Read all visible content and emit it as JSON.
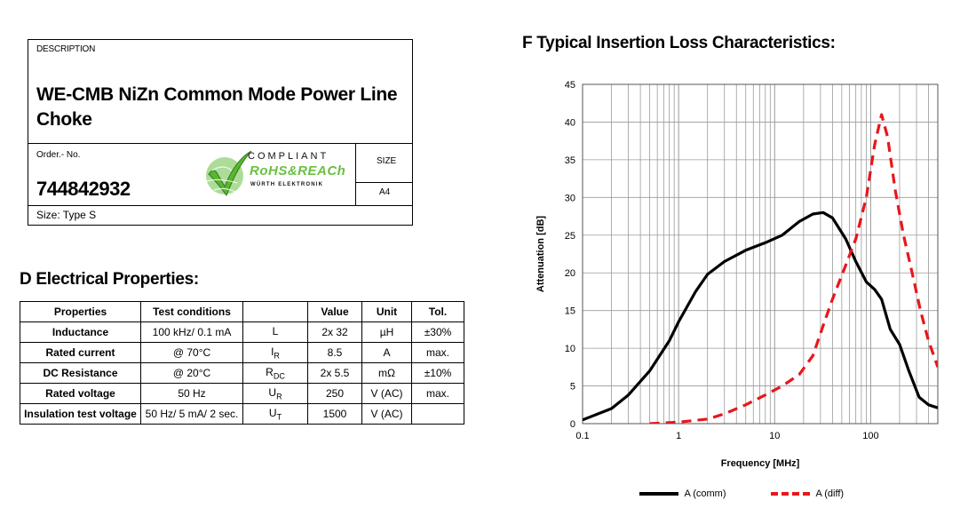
{
  "header": {
    "description_label": "DESCRIPTION",
    "product_title": "WE-CMB NiZn Common Mode Power Line Choke",
    "order_label": "Order.- No.",
    "order_number": "744842932",
    "size_label": "SIZE",
    "size_value": "A4",
    "size_type": "Size: Type S",
    "logo": {
      "line1": "COMPLIANT",
      "line2": "RoHS&REACh",
      "line3": "WÜRTH ELEKTRONIK",
      "accent": "#6ac043"
    }
  },
  "electrical": {
    "title": "D Electrical Properties:",
    "headers": [
      "Properties",
      "Test conditions",
      "",
      "Value",
      "Unit",
      "Tol."
    ],
    "rows": [
      {
        "property": "Inductance",
        "condition": "100 kHz/ 0.1 mA",
        "sym": "L",
        "sub": "",
        "value": "2x 32",
        "unit": "µH",
        "tol": "±30%"
      },
      {
        "property": "Rated current",
        "condition": "@ 70°C",
        "sym": "I",
        "sub": "R",
        "value": "8.5",
        "unit": "A",
        "tol": "max."
      },
      {
        "property": "DC Resistance",
        "condition": "@ 20°C",
        "sym": "R",
        "sub": "DC",
        "value": "2x 5.5",
        "unit": "mΩ",
        "tol": "±10%"
      },
      {
        "property": "Rated voltage",
        "condition": "50 Hz",
        "sym": "U",
        "sub": "R",
        "value": "250",
        "unit": "V (AC)",
        "tol": "max."
      },
      {
        "property": "Insulation test voltage",
        "condition": "50 Hz/ 5 mA/ 2 sec.",
        "sym": "U",
        "sub": "T",
        "value": "1500",
        "unit": "V (AC)",
        "tol": ""
      }
    ]
  },
  "chart_title": "F Typical Insertion Loss Characteristics:",
  "chart_data": {
    "type": "line",
    "xscale": "log",
    "xlim": [
      0.1,
      500
    ],
    "ylim": [
      0,
      45
    ],
    "xticks": [
      "0.1",
      "1",
      "10",
      "100"
    ],
    "yticks": [
      "0",
      "5",
      "10",
      "15",
      "20",
      "25",
      "30",
      "35",
      "40",
      "45"
    ],
    "xlabel": "Frequency [MHz]",
    "ylabel": "Attenuation [dB]",
    "grid": true,
    "legend_position": "bottom",
    "series": [
      {
        "name": "A (comm)",
        "color": "#000000",
        "style": "solid",
        "points": [
          [
            0.1,
            0.5
          ],
          [
            0.2,
            2
          ],
          [
            0.3,
            3.8
          ],
          [
            0.5,
            7
          ],
          [
            0.8,
            11
          ],
          [
            1,
            13.5
          ],
          [
            1.5,
            17.5
          ],
          [
            2,
            19.8
          ],
          [
            3,
            21.5
          ],
          [
            5,
            23
          ],
          [
            8,
            24
          ],
          [
            12,
            25
          ],
          [
            18,
            26.8
          ],
          [
            25,
            27.8
          ],
          [
            32,
            28
          ],
          [
            40,
            27.3
          ],
          [
            55,
            24.5
          ],
          [
            70,
            21.5
          ],
          [
            90,
            18.8
          ],
          [
            110,
            17.8
          ],
          [
            130,
            16.5
          ],
          [
            160,
            12.5
          ],
          [
            200,
            10.5
          ],
          [
            250,
            7
          ],
          [
            320,
            3.5
          ],
          [
            400,
            2.5
          ],
          [
            500,
            2.1
          ]
        ]
      },
      {
        "name": "A (diff)",
        "color": "#e8161b",
        "style": "dashed",
        "points": [
          [
            0.5,
            0
          ],
          [
            1,
            0.2
          ],
          [
            2,
            0.6
          ],
          [
            3,
            1.3
          ],
          [
            5,
            2.5
          ],
          [
            8,
            3.8
          ],
          [
            12,
            5
          ],
          [
            18,
            6.5
          ],
          [
            25,
            9
          ],
          [
            32,
            13
          ],
          [
            40,
            16.5
          ],
          [
            55,
            21
          ],
          [
            70,
            24.5
          ],
          [
            90,
            30
          ],
          [
            110,
            37
          ],
          [
            130,
            41
          ],
          [
            150,
            38
          ],
          [
            180,
            31
          ],
          [
            220,
            25
          ],
          [
            270,
            20
          ],
          [
            330,
            15
          ],
          [
            400,
            11
          ],
          [
            500,
            7.5
          ]
        ]
      }
    ]
  }
}
